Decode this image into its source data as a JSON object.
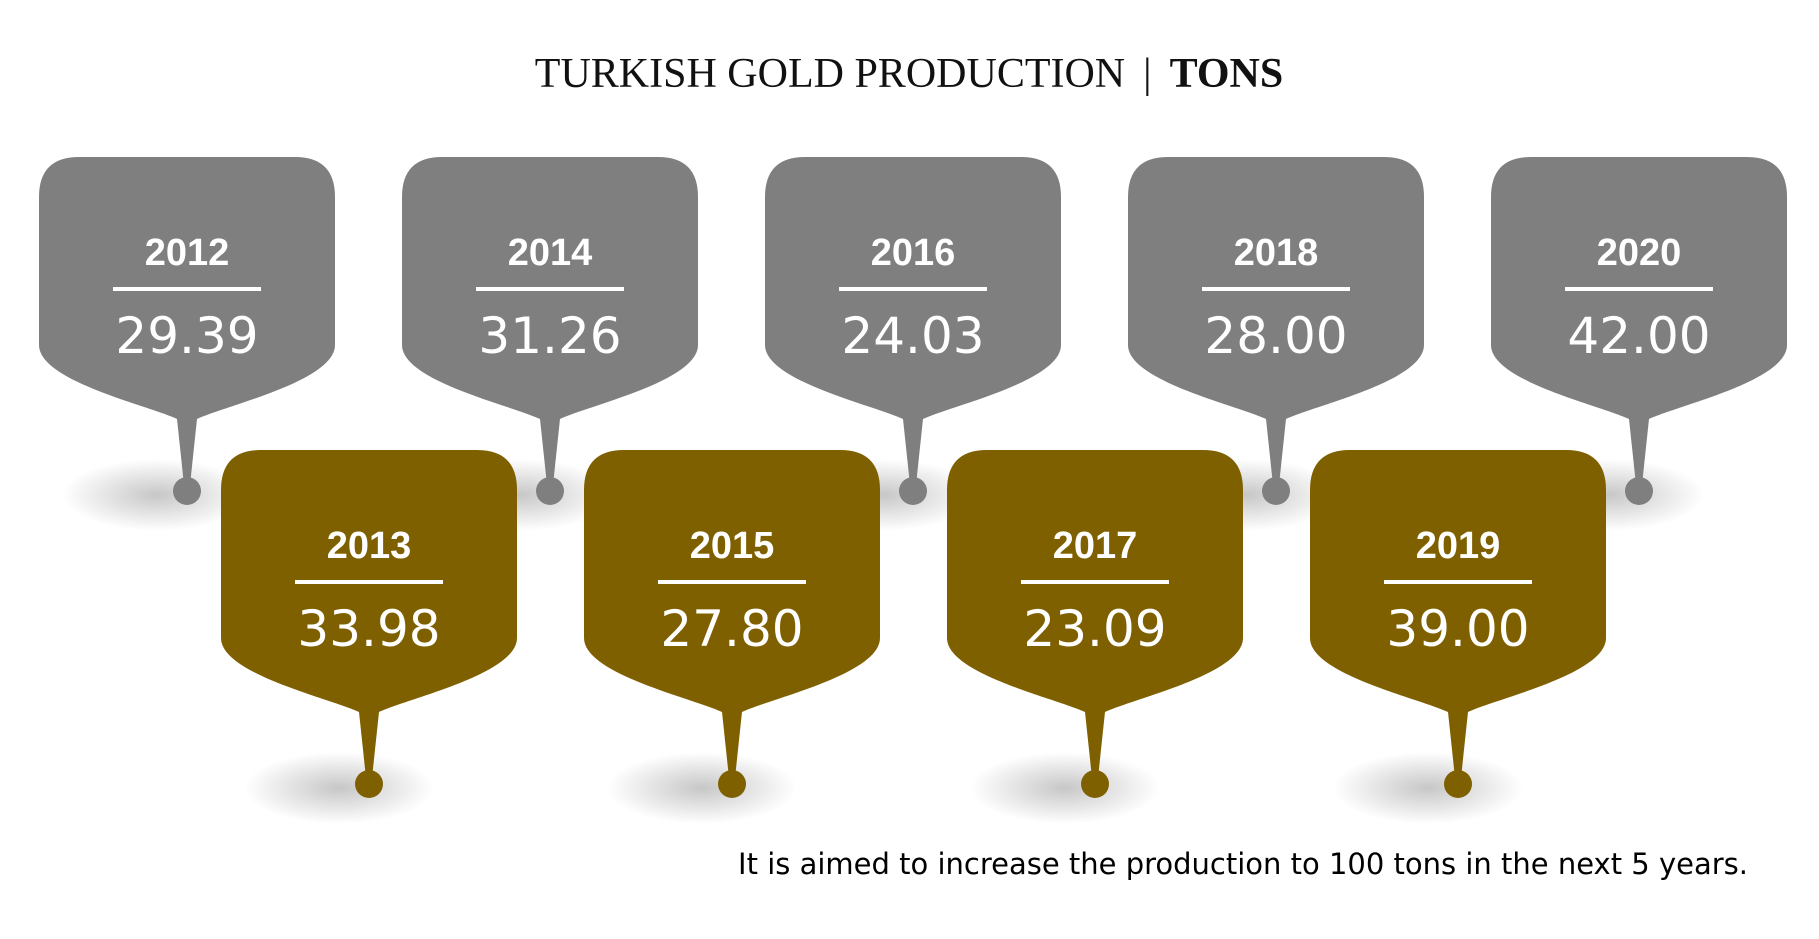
{
  "title": {
    "main": "TURKISH GOLD PRODUCTION",
    "separator": "|",
    "unit": "TONS"
  },
  "footnote": "It is aimed to increase the production to 100 tons in the next 5 years.",
  "colors": {
    "even_year_bubble": "#7f7f7f",
    "odd_year_bubble": "#7f6000",
    "text_on_bubble": "#ffffff",
    "title": "#111111"
  },
  "chart_data": {
    "type": "bar",
    "categories": [
      "2012",
      "2013",
      "2014",
      "2015",
      "2016",
      "2017",
      "2018",
      "2019",
      "2020"
    ],
    "values": [
      29.39,
      33.98,
      31.26,
      27.8,
      24.03,
      23.09,
      28.0,
      39.0,
      42.0
    ],
    "value_labels": [
      "29.39",
      "33.98",
      "31.26",
      "27.80",
      "24.03",
      "23.09",
      "28.00",
      "39.00",
      "42.00"
    ],
    "title": "TURKISH GOLD PRODUCTION | TONS",
    "xlabel": "",
    "ylabel": "",
    "grid": false,
    "legend": "none"
  }
}
